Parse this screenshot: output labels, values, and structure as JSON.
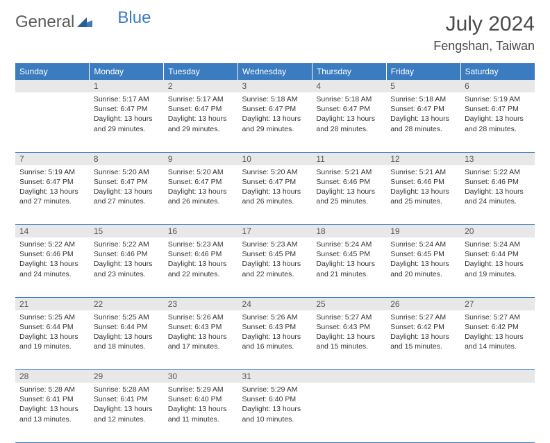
{
  "logo": {
    "text1": "General",
    "text2": "Blue"
  },
  "title": "July 2024",
  "location": "Fengshan, Taiwan",
  "theme": {
    "header_bg": "#3b7bbf",
    "header_fg": "#ffffff",
    "daynum_bg": "#e8e8e8",
    "daynum_fg": "#555555",
    "body_bg": "#ffffff",
    "text_color": "#333333",
    "rule_color": "#3b7bbf",
    "title_fontsize": 30,
    "location_fontsize": 18,
    "weekday_fontsize": 12,
    "daynum_fontsize": 12,
    "cell_fontsize": 10.5
  },
  "weekdays": [
    "Sunday",
    "Monday",
    "Tuesday",
    "Wednesday",
    "Thursday",
    "Friday",
    "Saturday"
  ],
  "weeks": [
    [
      null,
      {
        "n": "1",
        "sr": "5:17 AM",
        "ss": "6:47 PM",
        "dl": "13 hours and 29 minutes."
      },
      {
        "n": "2",
        "sr": "5:17 AM",
        "ss": "6:47 PM",
        "dl": "13 hours and 29 minutes."
      },
      {
        "n": "3",
        "sr": "5:18 AM",
        "ss": "6:47 PM",
        "dl": "13 hours and 29 minutes."
      },
      {
        "n": "4",
        "sr": "5:18 AM",
        "ss": "6:47 PM",
        "dl": "13 hours and 28 minutes."
      },
      {
        "n": "5",
        "sr": "5:18 AM",
        "ss": "6:47 PM",
        "dl": "13 hours and 28 minutes."
      },
      {
        "n": "6",
        "sr": "5:19 AM",
        "ss": "6:47 PM",
        "dl": "13 hours and 28 minutes."
      }
    ],
    [
      {
        "n": "7",
        "sr": "5:19 AM",
        "ss": "6:47 PM",
        "dl": "13 hours and 27 minutes."
      },
      {
        "n": "8",
        "sr": "5:20 AM",
        "ss": "6:47 PM",
        "dl": "13 hours and 27 minutes."
      },
      {
        "n": "9",
        "sr": "5:20 AM",
        "ss": "6:47 PM",
        "dl": "13 hours and 26 minutes."
      },
      {
        "n": "10",
        "sr": "5:20 AM",
        "ss": "6:47 PM",
        "dl": "13 hours and 26 minutes."
      },
      {
        "n": "11",
        "sr": "5:21 AM",
        "ss": "6:46 PM",
        "dl": "13 hours and 25 minutes."
      },
      {
        "n": "12",
        "sr": "5:21 AM",
        "ss": "6:46 PM",
        "dl": "13 hours and 25 minutes."
      },
      {
        "n": "13",
        "sr": "5:22 AM",
        "ss": "6:46 PM",
        "dl": "13 hours and 24 minutes."
      }
    ],
    [
      {
        "n": "14",
        "sr": "5:22 AM",
        "ss": "6:46 PM",
        "dl": "13 hours and 24 minutes."
      },
      {
        "n": "15",
        "sr": "5:22 AM",
        "ss": "6:46 PM",
        "dl": "13 hours and 23 minutes."
      },
      {
        "n": "16",
        "sr": "5:23 AM",
        "ss": "6:46 PM",
        "dl": "13 hours and 22 minutes."
      },
      {
        "n": "17",
        "sr": "5:23 AM",
        "ss": "6:45 PM",
        "dl": "13 hours and 22 minutes."
      },
      {
        "n": "18",
        "sr": "5:24 AM",
        "ss": "6:45 PM",
        "dl": "13 hours and 21 minutes."
      },
      {
        "n": "19",
        "sr": "5:24 AM",
        "ss": "6:45 PM",
        "dl": "13 hours and 20 minutes."
      },
      {
        "n": "20",
        "sr": "5:24 AM",
        "ss": "6:44 PM",
        "dl": "13 hours and 19 minutes."
      }
    ],
    [
      {
        "n": "21",
        "sr": "5:25 AM",
        "ss": "6:44 PM",
        "dl": "13 hours and 19 minutes."
      },
      {
        "n": "22",
        "sr": "5:25 AM",
        "ss": "6:44 PM",
        "dl": "13 hours and 18 minutes."
      },
      {
        "n": "23",
        "sr": "5:26 AM",
        "ss": "6:43 PM",
        "dl": "13 hours and 17 minutes."
      },
      {
        "n": "24",
        "sr": "5:26 AM",
        "ss": "6:43 PM",
        "dl": "13 hours and 16 minutes."
      },
      {
        "n": "25",
        "sr": "5:27 AM",
        "ss": "6:43 PM",
        "dl": "13 hours and 15 minutes."
      },
      {
        "n": "26",
        "sr": "5:27 AM",
        "ss": "6:42 PM",
        "dl": "13 hours and 15 minutes."
      },
      {
        "n": "27",
        "sr": "5:27 AM",
        "ss": "6:42 PM",
        "dl": "13 hours and 14 minutes."
      }
    ],
    [
      {
        "n": "28",
        "sr": "5:28 AM",
        "ss": "6:41 PM",
        "dl": "13 hours and 13 minutes."
      },
      {
        "n": "29",
        "sr": "5:28 AM",
        "ss": "6:41 PM",
        "dl": "13 hours and 12 minutes."
      },
      {
        "n": "30",
        "sr": "5:29 AM",
        "ss": "6:40 PM",
        "dl": "13 hours and 11 minutes."
      },
      {
        "n": "31",
        "sr": "5:29 AM",
        "ss": "6:40 PM",
        "dl": "13 hours and 10 minutes."
      },
      null,
      null,
      null
    ]
  ],
  "labels": {
    "sunrise": "Sunrise:",
    "sunset": "Sunset:",
    "daylight": "Daylight:"
  }
}
